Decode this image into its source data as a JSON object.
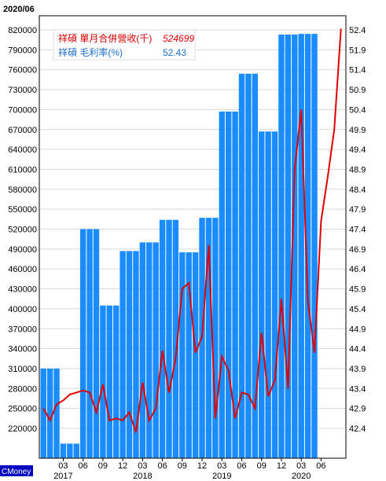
{
  "period_label": "2020/06",
  "brand": "CMoney",
  "legend": {
    "revenue_label": "祥碩 單月合併營收(千)",
    "revenue_value": "524699",
    "margin_label": "祥碩 毛利率(%)",
    "margin_value": "52.43"
  },
  "colors": {
    "bar": "#1a8cff",
    "line": "#e00000",
    "revenue_text": "#e00000",
    "margin_text": "#1a6fd0",
    "brand_bg": "#0000c0"
  },
  "chart_data": {
    "type": "bar+line",
    "x_start_month": "2016/12",
    "y_left": {
      "ticks": [
        220000,
        250000,
        280000,
        310000,
        340000,
        370000,
        400000,
        430000,
        460000,
        490000,
        520000,
        550000,
        580000,
        610000,
        640000,
        670000,
        700000,
        730000,
        760000,
        790000,
        820000
      ],
      "labels": [
        "220000",
        "250000",
        "280000",
        "310000",
        "340000",
        "370000",
        "400000",
        "430000",
        "460000",
        "490000",
        "520000",
        "550000",
        "580000",
        "610000",
        "640000",
        "670000",
        "700000",
        "730000",
        "760000",
        "790000",
        "820000"
      ]
    },
    "y_right": {
      "ticks": [
        42.4,
        42.9,
        43.4,
        43.9,
        44.4,
        44.9,
        45.4,
        45.9,
        46.4,
        46.9,
        47.4,
        47.9,
        48.4,
        48.9,
        49.4,
        49.9,
        50.4,
        50.9,
        51.4,
        51.9,
        52.4
      ],
      "labels": [
        "42.4",
        "42.9",
        "43.4",
        "43.9",
        "44.4",
        "44.9",
        "45.4",
        "45.9",
        "46.4",
        "46.9",
        "47.4",
        "47.9",
        "48.4",
        "48.9",
        "49.4",
        "49.9",
        "50.4",
        "50.9",
        "51.4",
        "51.9",
        "52.4"
      ]
    },
    "x_ticks": [
      {
        "i": 3,
        "label": "03"
      },
      {
        "i": 6,
        "label": "06"
      },
      {
        "i": 9,
        "label": "09"
      },
      {
        "i": 12,
        "label": "12"
      },
      {
        "i": 15,
        "label": "03"
      },
      {
        "i": 18,
        "label": "06"
      },
      {
        "i": 21,
        "label": "09"
      },
      {
        "i": 24,
        "label": "12"
      },
      {
        "i": 27,
        "label": "03"
      },
      {
        "i": 30,
        "label": "06"
      },
      {
        "i": 33,
        "label": "09"
      },
      {
        "i": 36,
        "label": "12"
      },
      {
        "i": 39,
        "label": "03"
      },
      {
        "i": 42,
        "label": "06"
      }
    ],
    "year_labels": [
      {
        "i": 3,
        "label": "2017"
      },
      {
        "i": 15,
        "label": "2018"
      },
      {
        "i": 27,
        "label": "2019"
      },
      {
        "i": 39,
        "label": "2020"
      }
    ],
    "revenue_series": {
      "name": "祥碩 單月合併營收(千)",
      "quarters": [
        {
          "start": 0,
          "len": 3,
          "value": 310000
        },
        {
          "start": 3,
          "len": 3,
          "value": 197000
        },
        {
          "start": 6,
          "len": 3,
          "value": 520000
        },
        {
          "start": 9,
          "len": 3,
          "value": 405000
        },
        {
          "start": 12,
          "len": 3,
          "value": 487000
        },
        {
          "start": 15,
          "len": 3,
          "value": 500000
        },
        {
          "start": 18,
          "len": 3,
          "value": 534000
        },
        {
          "start": 21,
          "len": 3,
          "value": 485000
        },
        {
          "start": 24,
          "len": 3,
          "value": 537000
        },
        {
          "start": 27,
          "len": 3,
          "value": 697000
        },
        {
          "start": 30,
          "len": 3,
          "value": 754000
        },
        {
          "start": 33,
          "len": 3,
          "value": 667000
        },
        {
          "start": 36,
          "len": 3,
          "value": 813000
        },
        {
          "start": 39,
          "len": 3,
          "value": 814000
        }
      ]
    },
    "margin_series": {
      "name": "祥碩 毛利率(%)",
      "values": [
        42.9,
        42.6,
        43.0,
        43.1,
        43.25,
        43.3,
        43.35,
        43.3,
        42.8,
        43.5,
        42.6,
        42.65,
        42.6,
        42.8,
        42.3,
        43.55,
        42.6,
        42.9,
        44.35,
        43.3,
        44.15,
        45.9,
        46.05,
        44.3,
        44.7,
        47.0,
        42.65,
        44.2,
        43.85,
        42.65,
        43.3,
        43.25,
        42.9,
        44.8,
        43.2,
        43.6,
        45.65,
        43.4,
        48.9,
        50.4,
        45.6,
        44.3,
        47.6,
        48.7,
        49.9,
        52.43
      ]
    }
  }
}
